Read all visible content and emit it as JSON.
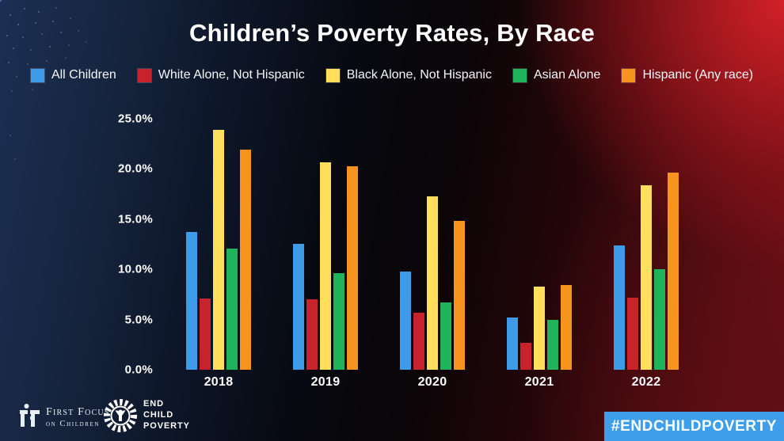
{
  "title": "Children’s Poverty Rates, By Race",
  "legend": [
    {
      "label": "All Children",
      "color": "#3D9BE9"
    },
    {
      "label": "White Alone, Not Hispanic",
      "color": "#C8232A"
    },
    {
      "label": "Black Alone, Not Hispanic",
      "color": "#FFDF5B"
    },
    {
      "label": "Asian Alone",
      "color": "#1FB35B"
    },
    {
      "label": "Hispanic (Any race)",
      "color": "#F7941E"
    }
  ],
  "chart_data": {
    "type": "bar",
    "categories": [
      "2018",
      "2019",
      "2020",
      "2021",
      "2022"
    ],
    "series": [
      {
        "name": "All Children",
        "color": "#3D9BE9",
        "values": [
          13.7,
          12.5,
          9.8,
          5.2,
          12.4
        ]
      },
      {
        "name": "White Alone, Not Hispanic",
        "color": "#C8232A",
        "values": [
          7.1,
          7.0,
          5.7,
          2.7,
          7.2
        ]
      },
      {
        "name": "Black Alone, Not Hispanic",
        "color": "#FFDF5B",
        "values": [
          23.9,
          20.7,
          17.3,
          8.3,
          18.4
        ]
      },
      {
        "name": "Asian Alone",
        "color": "#1FB35B",
        "values": [
          12.1,
          9.6,
          6.7,
          5.0,
          10.0
        ]
      },
      {
        "name": "Hispanic (Any race)",
        "color": "#F7941E",
        "values": [
          21.9,
          20.3,
          14.8,
          8.4,
          19.6
        ]
      }
    ],
    "title": "Children’s Poverty Rates, By Race",
    "xlabel": "",
    "ylabel": "",
    "ylim": [
      0,
      25
    ],
    "y_ticks": [
      "25.0%",
      "20.0%",
      "15.0%",
      "10.0%",
      "5.0%",
      "0.0%"
    ],
    "grid": false,
    "legend_position": "top"
  },
  "footer": {
    "first_focus": {
      "line1": "First Focus",
      "line2": "on Children"
    },
    "end_child_poverty": {
      "line1": "END",
      "line2": "CHILD",
      "line3": "POVERTY"
    },
    "hashtag": "#ENDCHILDPOVERTY",
    "hashtag_bg": "#3E9EE9"
  }
}
